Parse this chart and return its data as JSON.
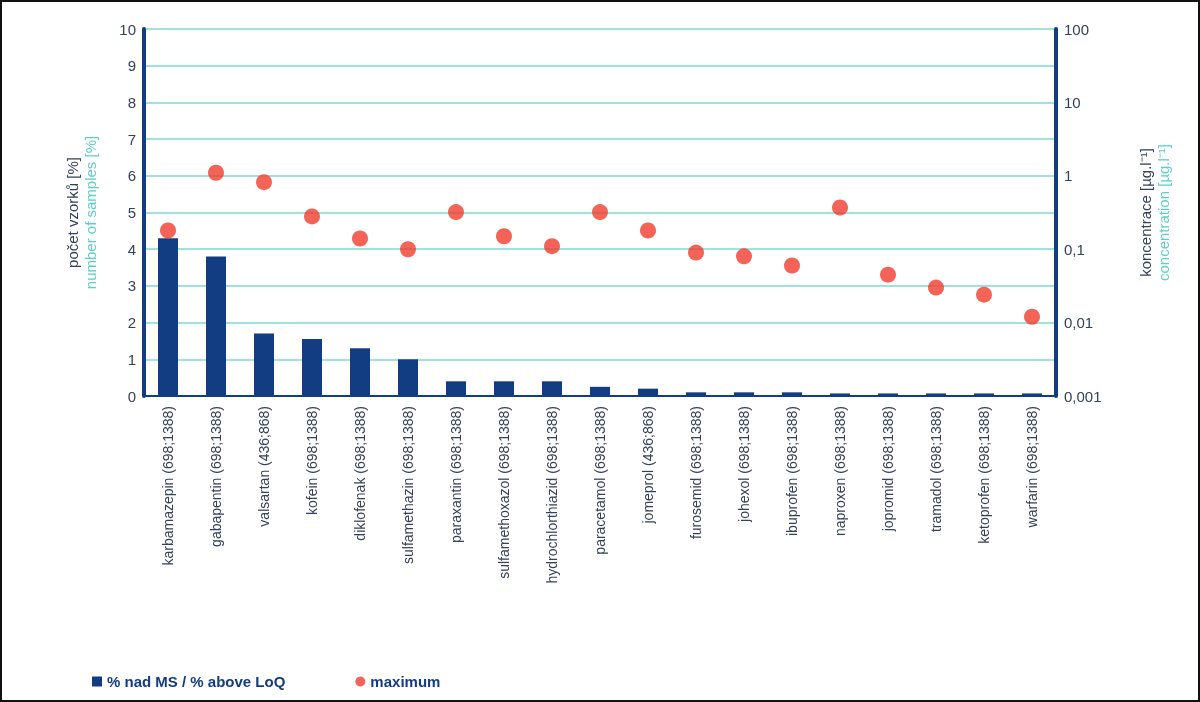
{
  "chart_data": {
    "type": "bar",
    "categories": [
      "karbamazepin (698;1388)",
      "gabapentin (698;1388)",
      "valsartan (436;868)",
      "kofein (698;1388)",
      "diklofenak (698;1388)",
      "sulfamethazin (698;1388)",
      "paraxantin (698;1388)",
      "sulfamethoxazol (698;1388)",
      "hydrochlorthiazid (698;1388)",
      "paracetamol (698;1388)",
      "jomeprol (436;868)",
      "furosemid (698;1388)",
      "johexol (698;1388)",
      "ibuprofen (698;1388)",
      "naproxen (698;1388)",
      "jopromid (698;1388)",
      "tramadol (698;1388)",
      "ketoprofen (698;1388)",
      "warfarin (698;1388)"
    ],
    "series": [
      {
        "name": "% nad MS / % above LoQ",
        "color": "#123d82",
        "values": [
          4.3,
          3.8,
          1.7,
          1.55,
          1.3,
          1.0,
          0.4,
          0.4,
          0.4,
          0.25,
          0.2,
          0.1,
          0.1,
          0.1,
          0.07,
          0.07,
          0.07,
          0.07,
          0.07
        ]
      },
      {
        "name": "maximum",
        "type": "scatter",
        "axis": "y2",
        "color": "#f03c2e",
        "marker": "circle",
        "values": [
          0.18,
          1.1,
          0.82,
          0.28,
          0.14,
          0.1,
          0.32,
          0.15,
          0.11,
          0.32,
          0.18,
          0.09,
          0.08,
          0.06,
          0.37,
          0.045,
          0.03,
          0.024,
          0.012
        ]
      }
    ],
    "ylabel": "počet vzorků [%]\nnumber of samples [%]",
    "y2label": "koncentrace [µg.l⁻¹]\nconcentration [µg.l⁻¹]",
    "ylim": [
      0,
      10
    ],
    "yticks": [
      0,
      1,
      2,
      3,
      4,
      5,
      6,
      7,
      8,
      9,
      10
    ],
    "y2lim": [
      0.001,
      100
    ],
    "y2ticks": [
      {
        "value": 0.001,
        "label": "0,001"
      },
      {
        "value": 0.01,
        "label": "0,01"
      },
      {
        "value": 0.1,
        "label": "0,1"
      },
      1,
      10,
      100
    ],
    "log": "y2",
    "grid": "y",
    "legend": "bottom left"
  }
}
